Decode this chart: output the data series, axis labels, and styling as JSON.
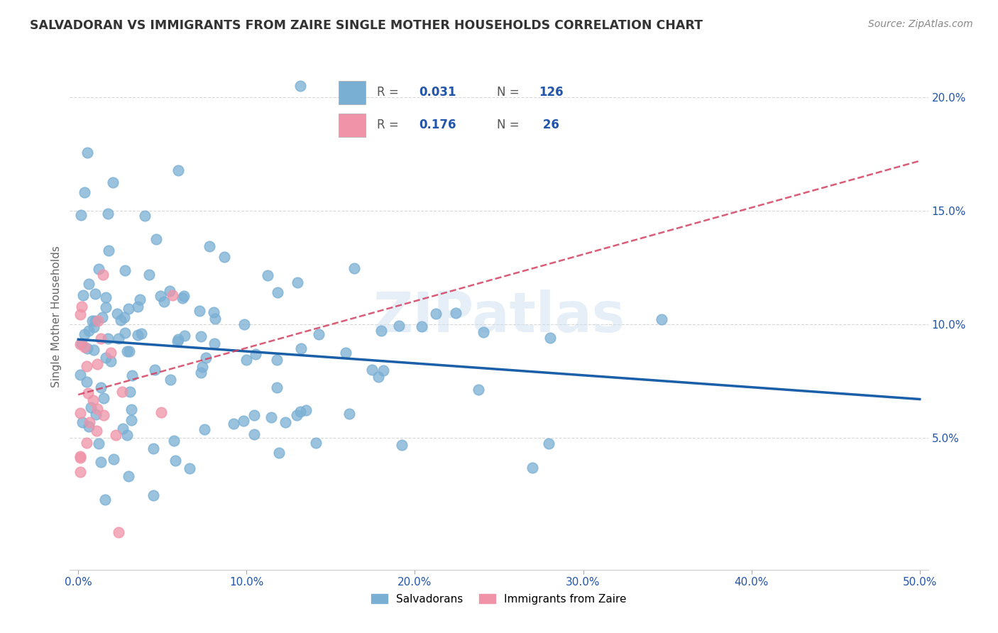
{
  "title": "SALVADORAN VS IMMIGRANTS FROM ZAIRE SINGLE MOTHER HOUSEHOLDS CORRELATION CHART",
  "source_text": "Source: ZipAtlas.com",
  "ylabel": "Single Mother Households",
  "xlim": [
    0.0,
    0.5
  ],
  "ylim": [
    0.0,
    0.21
  ],
  "yticks": [
    0.05,
    0.1,
    0.15,
    0.2
  ],
  "ytick_labels": [
    "5.0%",
    "10.0%",
    "15.0%",
    "20.0%"
  ],
  "xticks": [
    0.0,
    0.1,
    0.2,
    0.3,
    0.4,
    0.5
  ],
  "xtick_labels": [
    "0.0%",
    "10.0%",
    "20.0%",
    "30.0%",
    "40.0%",
    "50.0%"
  ],
  "salvadoran_color": "#7aafd4",
  "zaire_color": "#f093a8",
  "trendline_salvadoran_color": "#1a5fa8",
  "trendline_zaire_color": "#d44060",
  "watermark": "ZIPatlas",
  "background_color": "#ffffff",
  "grid_color": "#d8d8d8",
  "R_salvadoran": "0.031",
  "N_salvadoran": "126",
  "R_zaire": "0.176",
  "N_zaire": "26",
  "legend_sal_label": "Salvadorans",
  "legend_zai_label": "Immigrants from Zaire"
}
